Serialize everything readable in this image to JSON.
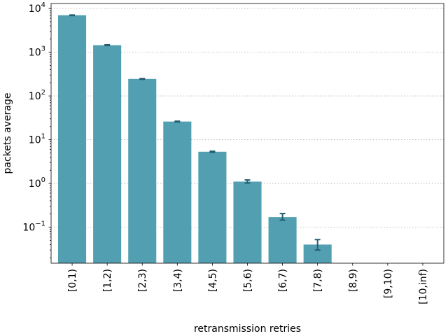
{
  "chart_data": {
    "type": "bar",
    "xlabel": "retransmission retries",
    "ylabel": "packets average",
    "yscale": "log",
    "ylim": [
      0.015,
      13000
    ],
    "grid": "y-major-dotted",
    "categories": [
      "[0,1)",
      "[1,2)",
      "[2,3)",
      "[3,4)",
      "[4,5)",
      "[5,6)",
      "[6,7)",
      "[7,8)",
      "[8,9)",
      "[9,10)",
      "[10,inf)"
    ],
    "values": [
      7000,
      1450,
      245,
      26,
      5.3,
      1.1,
      0.17,
      0.04,
      null,
      null,
      null
    ],
    "error_low": [
      6900,
      1420,
      240,
      25.5,
      5.15,
      1.02,
      0.145,
      0.03,
      null,
      null,
      null
    ],
    "error_high": [
      7100,
      1480,
      250,
      26.5,
      5.45,
      1.2,
      0.205,
      0.052,
      null,
      null,
      null
    ],
    "yticks": [
      {
        "value": 0.1,
        "mantissa": "10",
        "exp": "−1"
      },
      {
        "value": 1,
        "mantissa": "10",
        "exp": "0"
      },
      {
        "value": 10,
        "mantissa": "10",
        "exp": "1"
      },
      {
        "value": 100,
        "mantissa": "10",
        "exp": "2"
      },
      {
        "value": 1000,
        "mantissa": "10",
        "exp": "3"
      },
      {
        "value": 10000,
        "mantissa": "10",
        "exp": "4"
      }
    ],
    "colors": {
      "bar": "#529fb2",
      "error": "#245f6f"
    }
  }
}
